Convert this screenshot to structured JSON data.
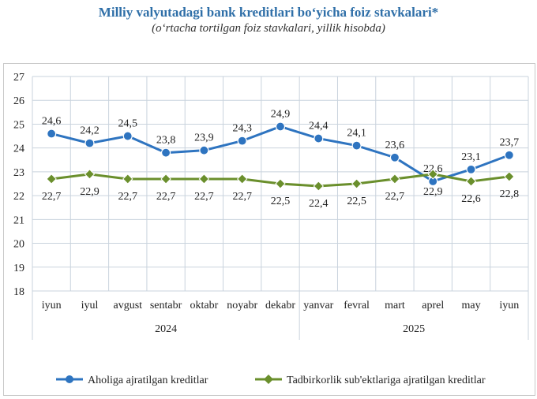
{
  "header": {
    "title": "Milliy valyutadagi bank kreditlari bo‘yicha foiz stavkalari*",
    "subtitle": "(o‘rtacha tortilgan foiz stavkalari, yillik hisobda)"
  },
  "chart_data": {
    "type": "line",
    "title": "Milliy valyutadagi bank kreditlari bo‘yicha foiz stavkalari*",
    "subtitle": "(o‘rtacha tortilgan foiz stavkalari, yillik hisobda)",
    "categories": [
      "iyun",
      "iyul",
      "avgust",
      "sentabr",
      "oktabr",
      "noyabr",
      "dekabr",
      "yanvar",
      "fevral",
      "mart",
      "aprel",
      "may",
      "iyun"
    ],
    "year_groups": [
      {
        "label": "2024",
        "start": 0,
        "end": 6
      },
      {
        "label": "2025",
        "start": 7,
        "end": 12
      }
    ],
    "ylim": [
      18,
      27
    ],
    "yticks": [
      18,
      19,
      20,
      21,
      22,
      23,
      24,
      25,
      26,
      27
    ],
    "grid": true,
    "legend_position": "bottom",
    "series": [
      {
        "name": "Aholiga ajratilgan kreditlar",
        "color": "#2e74c0",
        "marker": "circle",
        "values": [
          24.6,
          24.2,
          24.5,
          23.8,
          23.9,
          24.3,
          24.9,
          24.4,
          24.1,
          23.6,
          22.6,
          23.1,
          23.7
        ],
        "labels": [
          "24,6",
          "24,2",
          "24,5",
          "23,8",
          "23,9",
          "24,3",
          "24,9",
          "24,4",
          "24,1",
          "23,6",
          "22,6",
          "23,1",
          "23,7"
        ]
      },
      {
        "name": "Tadbirkorlik sub'ektlariga ajratilgan kreditlar",
        "color": "#6a8f2c",
        "marker": "diamond",
        "values": [
          22.7,
          22.9,
          22.7,
          22.7,
          22.7,
          22.7,
          22.5,
          22.4,
          22.5,
          22.7,
          22.9,
          22.6,
          22.8
        ],
        "labels": [
          "22,7",
          "22,9",
          "22,7",
          "22,7",
          "22,7",
          "22,7",
          "22,5",
          "22,4",
          "22,5",
          "22,7",
          "22,9",
          "22,6",
          "22,8"
        ]
      }
    ]
  }
}
